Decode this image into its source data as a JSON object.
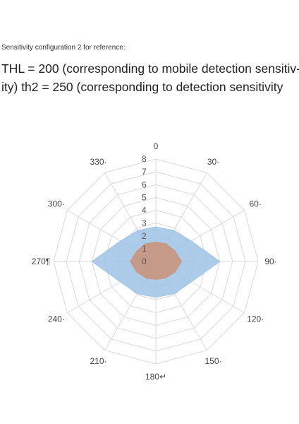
{
  "header": {
    "reference_note": "Sensitivity configuration 2 for reference:",
    "description_line1": "THL = 200 (corresponding to mobile detection sensitiv-",
    "description_line2": "ity) th2 = 250 (corresponding to detection sensitivity"
  },
  "chart_data": {
    "type": "radar",
    "angles": [
      "0",
      "30",
      "60",
      "90",
      "120",
      "150",
      "180",
      "210",
      "240",
      "270",
      "300",
      "330"
    ],
    "angle_labels": [
      "0",
      "30·",
      "60·",
      "90·",
      "120·",
      "150·",
      "180↵",
      "210·",
      "240·",
      "270¶",
      "300·",
      "330·"
    ],
    "radial_ticks": [
      "0",
      "1",
      "2",
      "3",
      "4",
      "5",
      "6",
      "7",
      "8"
    ],
    "rlim": [
      0,
      8
    ],
    "grid": true,
    "series": [
      {
        "color": "#9dc3e6",
        "opacity": 0.85,
        "values": [
          2.7,
          2.8,
          3.2,
          5.0,
          3.2,
          2.9,
          2.8,
          2.9,
          3.2,
          5.0,
          3.2,
          2.8
        ]
      },
      {
        "color": "#c9957d",
        "opacity": 0.9,
        "values": [
          1.5,
          1.6,
          1.7,
          2.0,
          1.7,
          1.5,
          1.4,
          1.5,
          1.7,
          2.0,
          1.7,
          1.6
        ]
      }
    ],
    "colors": {
      "grid": "#d9d9d9",
      "series1": "#9dc3e6",
      "series2": "#c9957d"
    }
  }
}
